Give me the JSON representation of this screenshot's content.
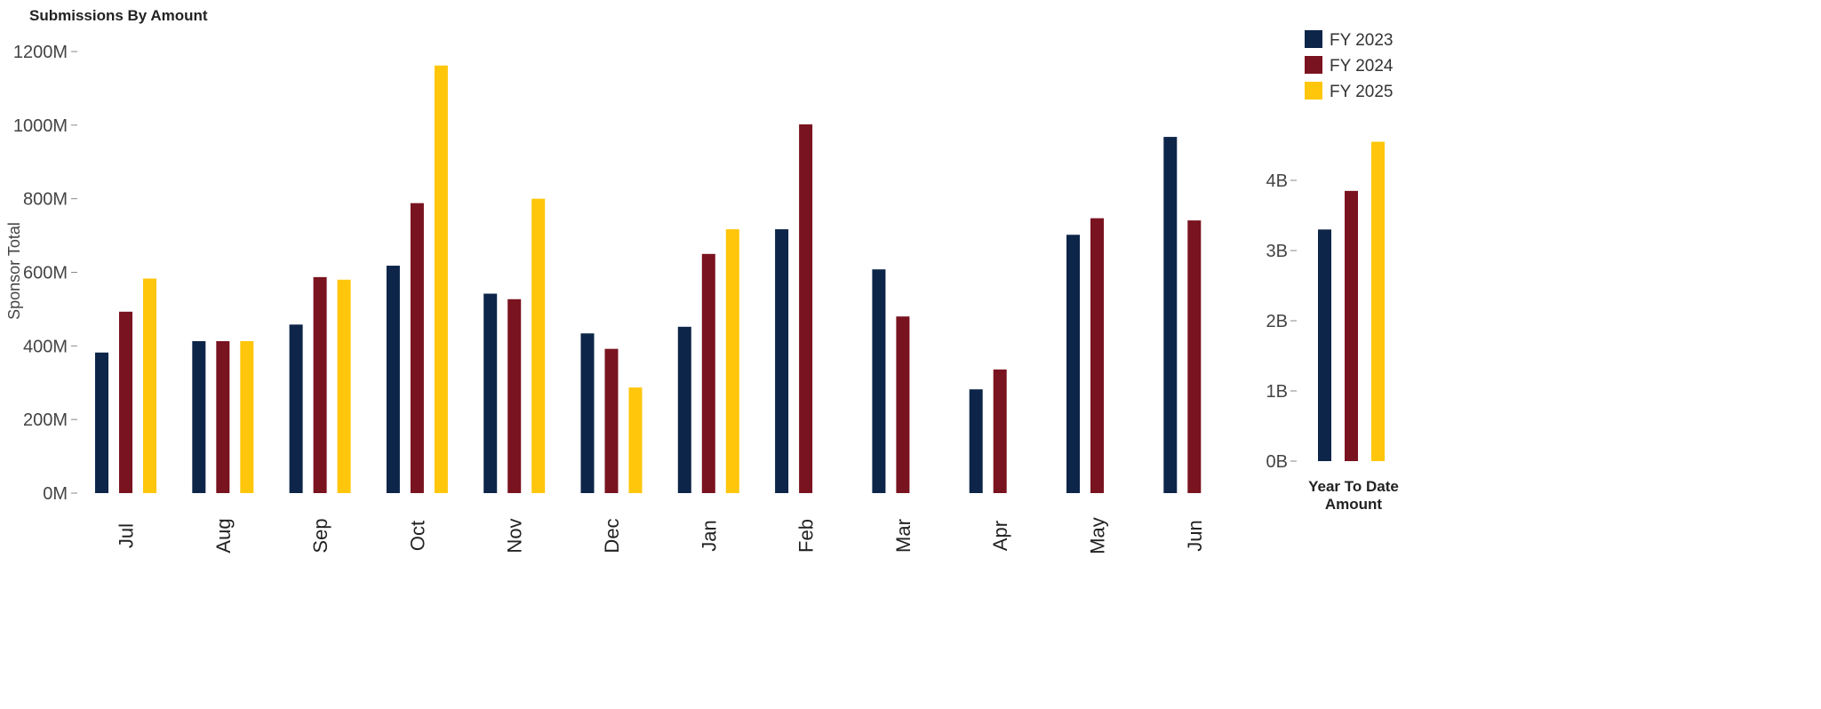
{
  "chart_data": [
    {
      "type": "bar",
      "title": "Submissions By Amount",
      "ylabel": "Sponsor Total",
      "xlabel": "",
      "ylim": [
        0,
        1200
      ],
      "yticks": [
        "0M",
        "200M",
        "400M",
        "600M",
        "800M",
        "1000M",
        "1200M"
      ],
      "categories": [
        "Jul",
        "Aug",
        "Sep",
        "Oct",
        "Nov",
        "Dec",
        "Jan",
        "Feb",
        "Mar",
        "Apr",
        "May",
        "Jun"
      ],
      "series": [
        {
          "name": "FY 2023",
          "color": "#0d2549",
          "values": [
            382,
            413,
            458,
            618,
            542,
            434,
            452,
            717,
            608,
            282,
            702,
            968
          ]
        },
        {
          "name": "FY 2024",
          "color": "#7a1320",
          "values": [
            493,
            413,
            587,
            788,
            527,
            392,
            650,
            1002,
            480,
            336,
            747,
            741
          ]
        },
        {
          "name": "FY 2025",
          "color": "#ffc60b",
          "values": [
            583,
            413,
            580,
            1162,
            800,
            287,
            717,
            null,
            null,
            null,
            null,
            null
          ]
        }
      ],
      "grid": false,
      "legend": "top-right"
    },
    {
      "type": "bar",
      "xlabel": "Year To Date Amount",
      "ylim": [
        0,
        4.5
      ],
      "yticks": [
        "0B",
        "1B",
        "2B",
        "3B",
        "4B"
      ],
      "categories": [
        "FY 2023",
        "FY 2024",
        "FY 2025"
      ],
      "series": [
        {
          "values": [
            3.3,
            3.85,
            4.55
          ],
          "colors": [
            "#0d2549",
            "#7a1320",
            "#ffc60b"
          ]
        }
      ]
    }
  ]
}
